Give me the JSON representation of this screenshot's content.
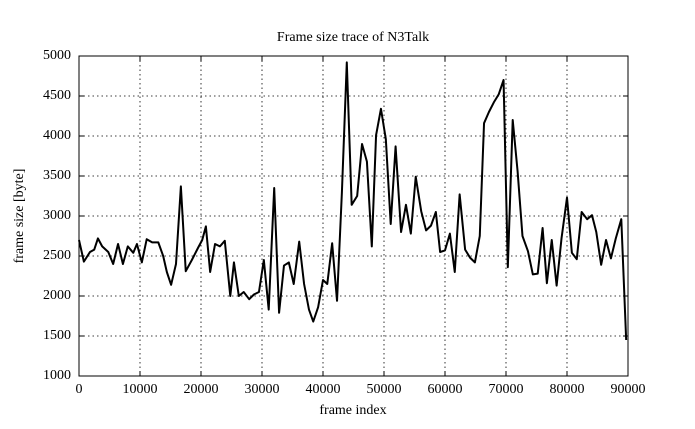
{
  "chart_data": {
    "type": "line",
    "title": "Frame size trace of N3Talk",
    "xlabel": "frame index",
    "ylabel": "frame size [byte]",
    "xlim": [
      0,
      90000
    ],
    "ylim": [
      1000,
      5000
    ],
    "xticks": [
      0,
      10000,
      20000,
      30000,
      40000,
      50000,
      60000,
      70000,
      80000,
      90000
    ],
    "yticks": [
      1000,
      1500,
      2000,
      2500,
      3000,
      3500,
      4000,
      4500,
      5000
    ],
    "grid": true,
    "x": [
      0,
      800,
      1800,
      2500,
      3100,
      3800,
      4800,
      5600,
      6400,
      7200,
      8000,
      8900,
      9500,
      10300,
      11100,
      12000,
      13000,
      13800,
      14400,
      15100,
      15900,
      16700,
      17500,
      18500,
      19500,
      20200,
      20800,
      21500,
      22300,
      23100,
      23900,
      24800,
      25400,
      26200,
      27000,
      27900,
      28700,
      29500,
      30300,
      31100,
      32000,
      32800,
      33600,
      34400,
      35200,
      36100,
      36900,
      37700,
      38400,
      39200,
      40000,
      40700,
      41500,
      42300,
      43100,
      43900,
      44700,
      45600,
      46400,
      47200,
      48000,
      48700,
      49500,
      50300,
      51100,
      51900,
      52800,
      53600,
      54400,
      55200,
      56100,
      56900,
      57700,
      58500,
      59200,
      60000,
      60800,
      61600,
      62400,
      63300,
      64100,
      64900,
      65700,
      66400,
      67200,
      68000,
      68800,
      69600,
      70300,
      71100,
      71900,
      72700,
      73600,
      74400,
      75200,
      76000,
      76700,
      77500,
      78300,
      79100,
      80000,
      80800,
      81600,
      82400,
      83300,
      84100,
      84800,
      85600,
      86400,
      87200,
      88000,
      88900,
      89700
    ],
    "series": [
      {
        "name": "frame size",
        "color": "#000000",
        "values": [
          2700,
          2430,
          2550,
          2580,
          2720,
          2620,
          2550,
          2400,
          2650,
          2400,
          2620,
          2540,
          2650,
          2420,
          2710,
          2670,
          2670,
          2500,
          2300,
          2140,
          2400,
          3370,
          2310,
          2450,
          2600,
          2700,
          2870,
          2300,
          2650,
          2620,
          2690,
          2000,
          2420,
          2000,
          2050,
          1960,
          2020,
          2050,
          2450,
          1830,
          3350,
          1790,
          2380,
          2420,
          2150,
          2680,
          2150,
          1830,
          1680,
          1860,
          2200,
          2150,
          2660,
          1940,
          3300,
          4920,
          3140,
          3250,
          3900,
          3680,
          2620,
          4010,
          4340,
          3960,
          2900,
          3870,
          2800,
          3140,
          2780,
          3490,
          3060,
          2820,
          2880,
          3050,
          2550,
          2570,
          2780,
          2300,
          3270,
          2580,
          2480,
          2420,
          2750,
          4160,
          4300,
          4420,
          4520,
          4700,
          2360,
          4200,
          3560,
          2750,
          2560,
          2270,
          2280,
          2850,
          2160,
          2700,
          2130,
          2720,
          3230,
          2540,
          2460,
          3050,
          2960,
          3010,
          2800,
          2390,
          2700,
          2470,
          2720,
          2960,
          1450
        ]
      }
    ]
  }
}
